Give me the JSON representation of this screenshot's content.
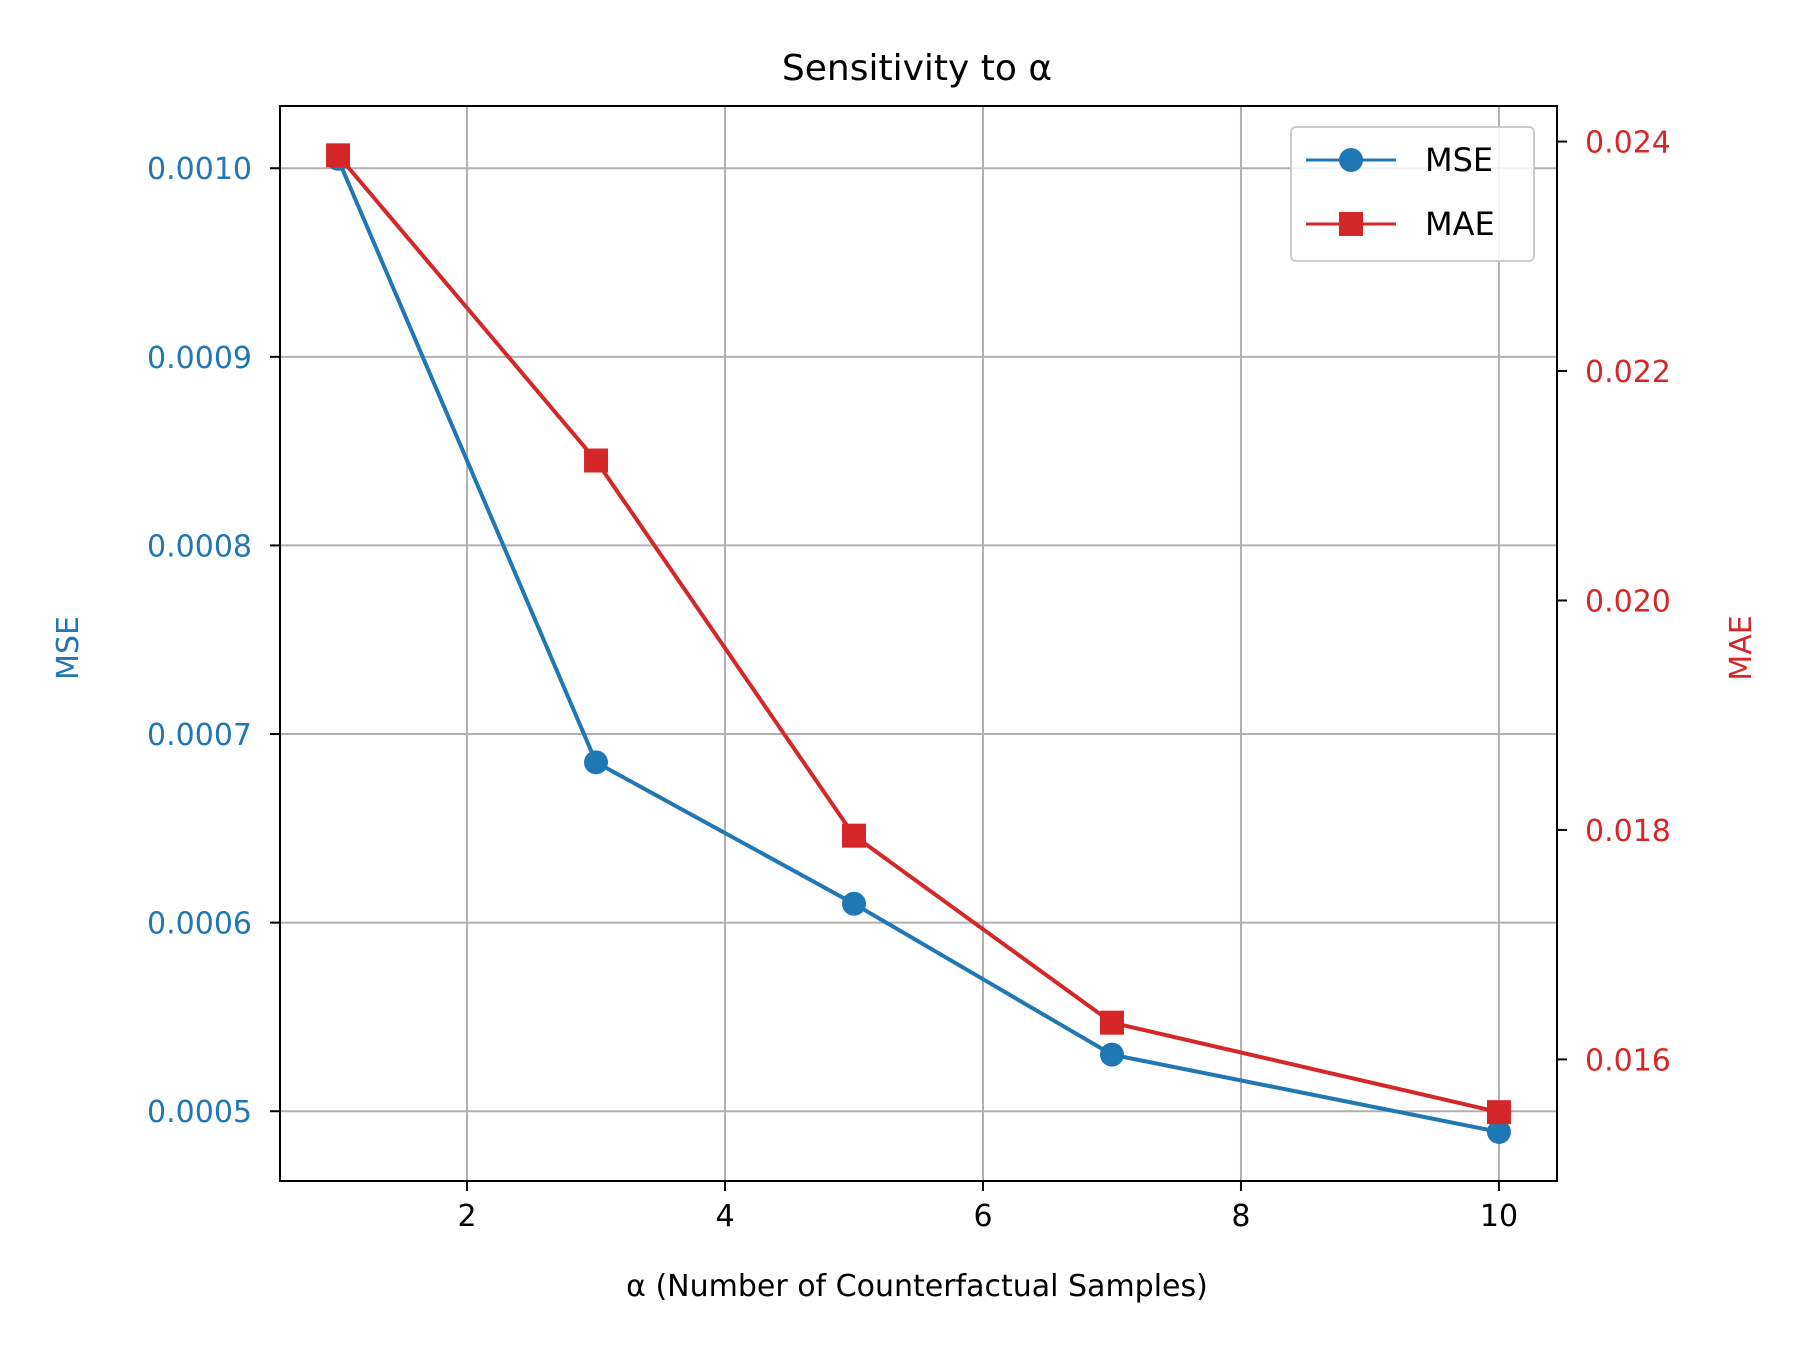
{
  "chart_data": {
    "type": "line",
    "title": "Sensitivity to α",
    "xlabel": "α (Number of Counterfactual Samples)",
    "ylabel_left": "MSE",
    "ylabel_right": "MAE",
    "x": [
      1,
      3,
      5,
      7,
      10
    ],
    "xlim": [
      0.55,
      10.45
    ],
    "xticks": [
      2,
      4,
      6,
      8,
      10
    ],
    "xtick_labels": [
      "2",
      "4",
      "6",
      "8",
      "10"
    ],
    "ylim_left": [
      0.000463,
      0.001033
    ],
    "yticks_left": [
      0.0005,
      0.0006,
      0.0007,
      0.0008,
      0.0009,
      0.001
    ],
    "ytick_labels_left": [
      "0.0005",
      "0.0006",
      "0.0007",
      "0.0008",
      "0.0009",
      "0.0010"
    ],
    "ylim_right": [
      0.01494,
      0.02431
    ],
    "yticks_right": [
      0.016,
      0.018,
      0.02,
      0.022,
      0.024
    ],
    "ytick_labels_right": [
      "0.016",
      "0.018",
      "0.020",
      "0.022",
      "0.024"
    ],
    "grid": true,
    "legend_position": "top-right",
    "series": [
      {
        "name": "MSE",
        "axis": "left",
        "marker": "circle",
        "color": "#1f77b4",
        "values": [
          0.001005,
          0.000685,
          0.00061,
          0.00053,
          0.000489
        ]
      },
      {
        "name": "MAE",
        "axis": "right",
        "marker": "square",
        "color": "#d62728",
        "values": [
          0.02388,
          0.02122,
          0.01795,
          0.01632,
          0.01554
        ]
      }
    ],
    "colors": {
      "axis": "#000000",
      "grid": "#b0b0b0",
      "left": "#1f77b4",
      "right": "#d62728"
    }
  }
}
